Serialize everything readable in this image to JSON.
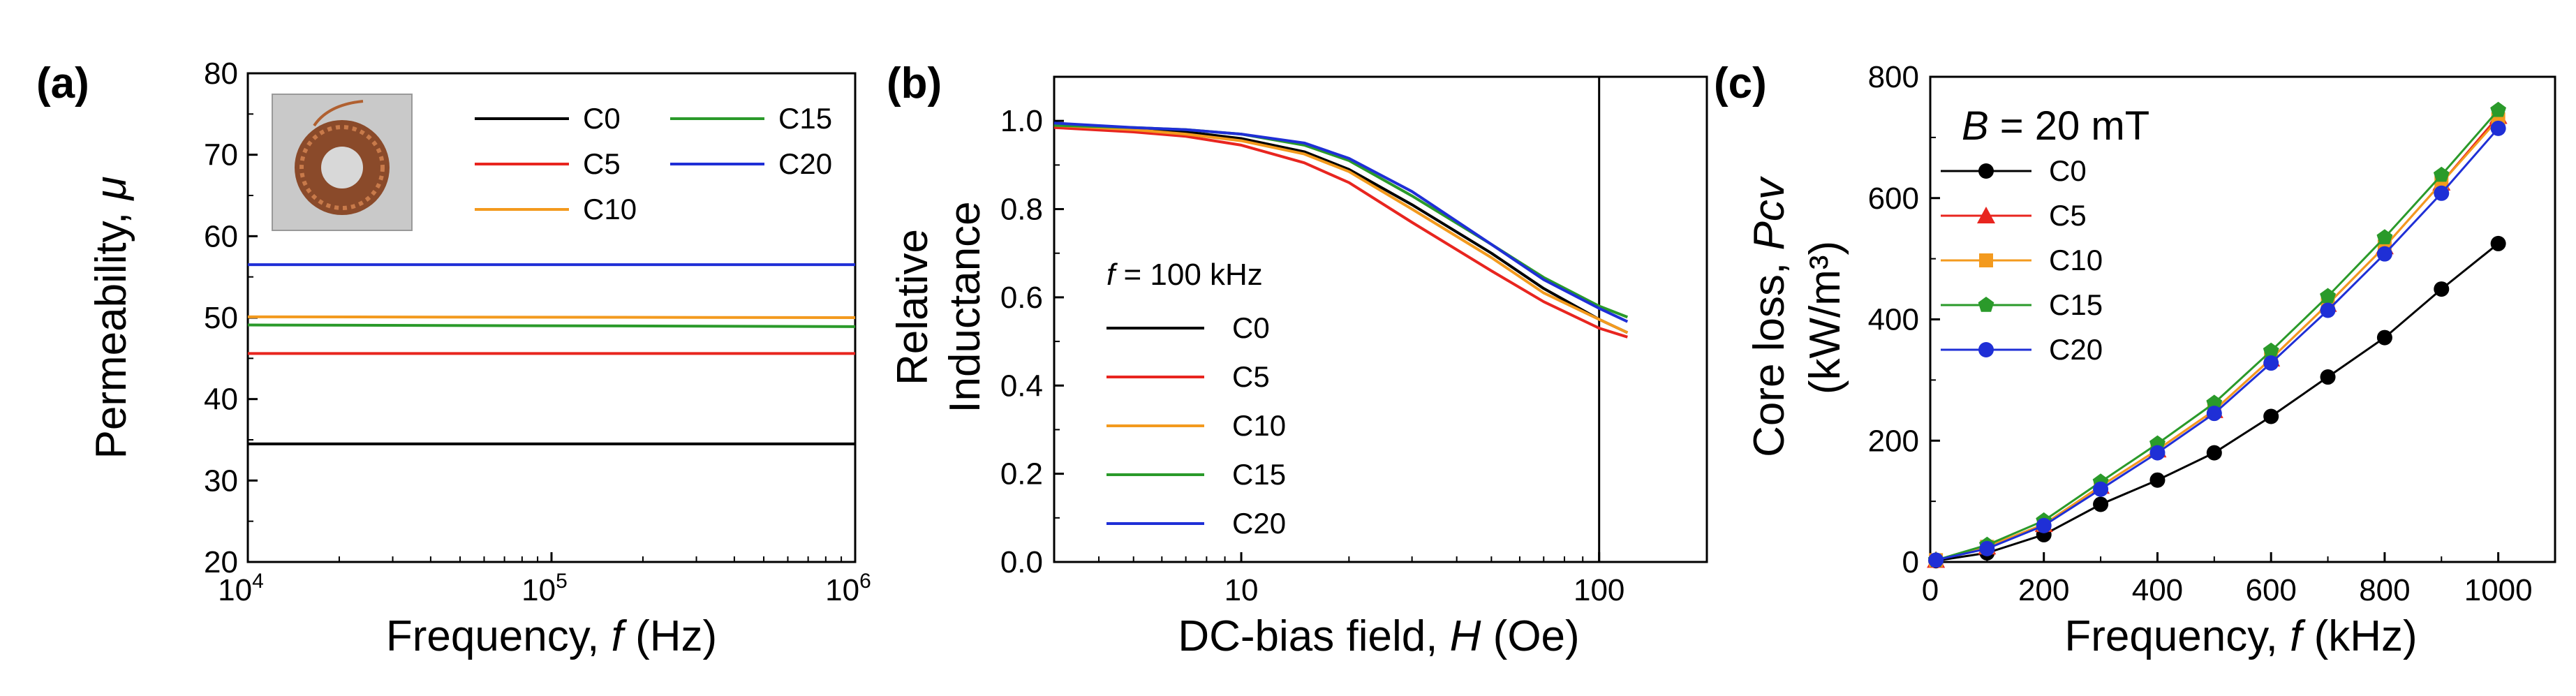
{
  "panels": [
    {
      "id": "a",
      "label": "(a)"
    },
    {
      "id": "b",
      "label": "(b)"
    },
    {
      "id": "c",
      "label": "(c)"
    }
  ],
  "chart_data": [
    {
      "panel": "(a)",
      "type": "line",
      "xlabel_parts": [
        "Frequency, ",
        "f",
        " (Hz)"
      ],
      "ylabel_parts": [
        "Permeability, ",
        "μ"
      ],
      "x_scale": "log",
      "xlim": [
        10000,
        1000000
      ],
      "ylim": [
        20,
        80
      ],
      "xticks": [
        {
          "value": 10000,
          "base": "10",
          "exp": "4"
        },
        {
          "value": 100000,
          "base": "10",
          "exp": "5"
        },
        {
          "value": 1000000,
          "base": "10",
          "exp": "6"
        }
      ],
      "yticks": [
        20,
        30,
        40,
        50,
        60,
        70,
        80
      ],
      "legend_placement": "top-right, two columns",
      "inset": "photo of toroidal inductor core wound with copper wire",
      "series": [
        {
          "name": "C0",
          "color": "#000000",
          "x": [
            10000,
            1000000
          ],
          "y": [
            34.5,
            34.5
          ]
        },
        {
          "name": "C5",
          "color": "#e8251f",
          "x": [
            10000,
            1000000
          ],
          "y": [
            45.6,
            45.6
          ]
        },
        {
          "name": "C10",
          "color": "#f39a1e",
          "x": [
            10000,
            1000000
          ],
          "y": [
            50.1,
            50.0
          ]
        },
        {
          "name": "C15",
          "color": "#2a9a2a",
          "x": [
            10000,
            1000000
          ],
          "y": [
            49.1,
            48.9
          ]
        },
        {
          "name": "C20",
          "color": "#1f2fd6",
          "x": [
            10000,
            1000000
          ],
          "y": [
            56.5,
            56.5
          ]
        }
      ]
    },
    {
      "panel": "(b)",
      "type": "line",
      "xlabel_parts": [
        "DC-bias field, ",
        "H",
        " (Oe)"
      ],
      "ylabel_lines": [
        "Relative",
        "Inductance"
      ],
      "x_scale": "log",
      "xlim": [
        3,
        200
      ],
      "ylim": [
        0.0,
        1.1
      ],
      "xticks": [
        10,
        100
      ],
      "yticks": [
        "0.0",
        "0.2",
        "0.4",
        "0.6",
        "0.8",
        "1.0"
      ],
      "vertical_line_x": 100,
      "annotation_parts": [
        "f",
        " = 100 kHz"
      ],
      "legend_placement": "lower-left",
      "x": [
        3,
        5,
        7,
        10,
        15,
        20,
        30,
        50,
        70,
        100,
        120
      ],
      "series": [
        {
          "name": "C0",
          "color": "#000000",
          "values": [
            0.99,
            0.98,
            0.975,
            0.96,
            0.93,
            0.89,
            0.81,
            0.7,
            0.62,
            0.55,
            0.52
          ]
        },
        {
          "name": "C5",
          "color": "#e8251f",
          "values": [
            0.985,
            0.975,
            0.965,
            0.945,
            0.905,
            0.86,
            0.77,
            0.66,
            0.59,
            0.53,
            0.51
          ]
        },
        {
          "name": "C10",
          "color": "#f39a1e",
          "values": [
            0.99,
            0.98,
            0.97,
            0.955,
            0.925,
            0.885,
            0.8,
            0.69,
            0.61,
            0.55,
            0.52
          ]
        },
        {
          "name": "C15",
          "color": "#2a9a2a",
          "values": [
            0.99,
            0.985,
            0.98,
            0.97,
            0.945,
            0.91,
            0.83,
            0.72,
            0.645,
            0.58,
            0.555
          ]
        },
        {
          "name": "C20",
          "color": "#1f2fd6",
          "values": [
            0.995,
            0.985,
            0.98,
            0.97,
            0.95,
            0.915,
            0.84,
            0.72,
            0.64,
            0.575,
            0.545
          ]
        }
      ]
    },
    {
      "panel": "(c)",
      "type": "line",
      "xlabel_parts": [
        "Frequency, ",
        "f",
        " (kHz)"
      ],
      "ylabel_lines": [
        "Core loss, Pcv",
        "(kW/m³)"
      ],
      "ylabel_line1_parts": [
        "Core loss, ",
        "Pcv"
      ],
      "ylabel_line2": "(kW/m³)",
      "xlim": [
        0,
        1100
      ],
      "ylim": [
        0,
        800
      ],
      "xticks": [
        0,
        200,
        400,
        600,
        800,
        1000
      ],
      "yticks": [
        0,
        200,
        400,
        600,
        800
      ],
      "annotation_parts": [
        "B",
        " = 20 mT"
      ],
      "legend_placement": "top-left",
      "x": [
        10,
        100,
        200,
        300,
        400,
        500,
        600,
        700,
        800,
        900,
        1000
      ],
      "series": [
        {
          "name": "C0",
          "color": "#000000",
          "marker": "circle",
          "values": [
            2,
            15,
            45,
            95,
            135,
            180,
            240,
            305,
            370,
            450,
            525
          ]
        },
        {
          "name": "C5",
          "color": "#e8251f",
          "marker": "triangle",
          "values": [
            3,
            25,
            62,
            125,
            185,
            250,
            335,
            425,
            520,
            625,
            735
          ]
        },
        {
          "name": "C10",
          "color": "#f39a1e",
          "marker": "square",
          "values": [
            3,
            25,
            62,
            125,
            185,
            250,
            335,
            425,
            520,
            625,
            730
          ]
        },
        {
          "name": "C15",
          "color": "#2a9a2a",
          "marker": "pentagon",
          "values": [
            3,
            28,
            68,
            132,
            195,
            262,
            348,
            438,
            535,
            638,
            745
          ]
        },
        {
          "name": "C20",
          "color": "#1f2fd6",
          "marker": "circle",
          "values": [
            3,
            22,
            60,
            120,
            180,
            245,
            328,
            415,
            508,
            608,
            715
          ]
        }
      ]
    }
  ]
}
